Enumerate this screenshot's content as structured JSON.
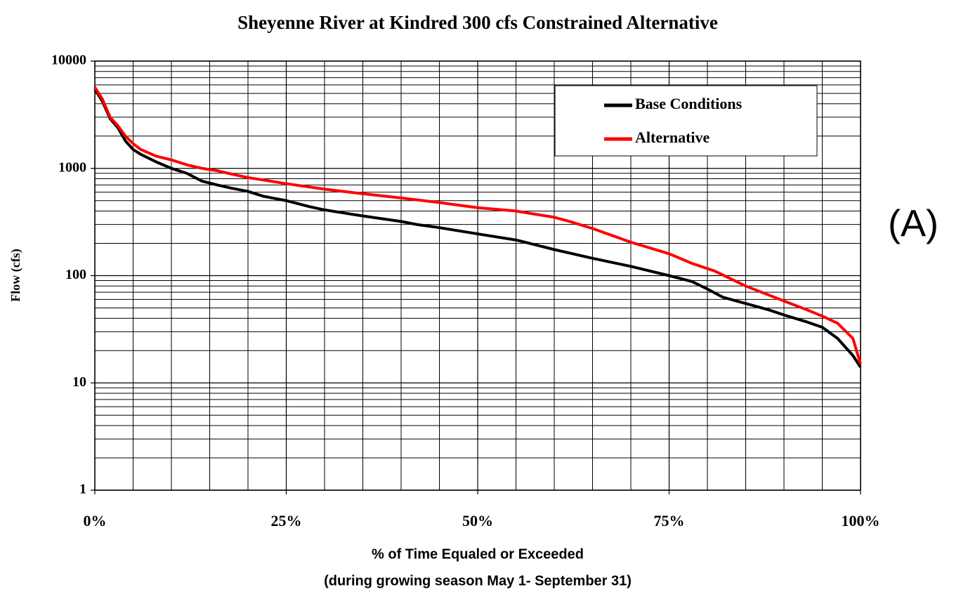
{
  "chart_data": {
    "type": "line",
    "title": "Sheyenne River at Kindred 300 cfs Constrained Alternative",
    "xlabel": "% of Time Equaled or Exceeded",
    "xlabel_sub": "(during growing season May 1- September 31)",
    "ylabel": "Flow (cfs)",
    "annotations": [
      "(A)"
    ],
    "log_y": true,
    "minor_grid": true,
    "x_grid_step": 5,
    "legend": "upper right",
    "xlim": [
      0,
      100
    ],
    "xticks": [
      {
        "value": 0,
        "label": "0%"
      },
      {
        "value": 25,
        "label": "25%"
      },
      {
        "value": 50,
        "label": "50%"
      },
      {
        "value": 75,
        "label": "75%"
      },
      {
        "value": 100,
        "label": "100%"
      }
    ],
    "ylim": [
      1,
      10000
    ],
    "yticks": [
      1,
      10,
      100,
      1000,
      10000
    ],
    "series": [
      {
        "name": "Base Conditions",
        "color": "#000000",
        "x": [
          0,
          1,
          2,
          3,
          4,
          5,
          6,
          8,
          10,
          12,
          14,
          16,
          18,
          20,
          22,
          25,
          28,
          30,
          35,
          40,
          42,
          45,
          50,
          55,
          60,
          65,
          70,
          75,
          78,
          80,
          82,
          85,
          88,
          90,
          93,
          95,
          97,
          99,
          100
        ],
        "values": [
          5500,
          4200,
          2900,
          2400,
          1800,
          1500,
          1350,
          1150,
          1000,
          900,
          760,
          700,
          650,
          610,
          550,
          500,
          440,
          410,
          360,
          320,
          300,
          280,
          245,
          215,
          175,
          145,
          122,
          100,
          88,
          75,
          63,
          55,
          48,
          43,
          37,
          33,
          26,
          18,
          14
        ]
      },
      {
        "name": "Alternative",
        "color": "#ff0000",
        "x": [
          0,
          1,
          2,
          3,
          4,
          5,
          6,
          8,
          10,
          12,
          14,
          16,
          18,
          20,
          22,
          25,
          30,
          35,
          40,
          45,
          50,
          55,
          60,
          62,
          65,
          70,
          75,
          78,
          81,
          85,
          88,
          90,
          93,
          95,
          97,
          99,
          100
        ],
        "values": [
          5700,
          4400,
          3000,
          2500,
          2000,
          1700,
          1500,
          1300,
          1200,
          1080,
          1000,
          950,
          880,
          820,
          780,
          720,
          640,
          580,
          530,
          480,
          430,
          400,
          350,
          320,
          275,
          205,
          160,
          130,
          110,
          80,
          66,
          58,
          48,
          42,
          36,
          26,
          15
        ]
      }
    ]
  }
}
